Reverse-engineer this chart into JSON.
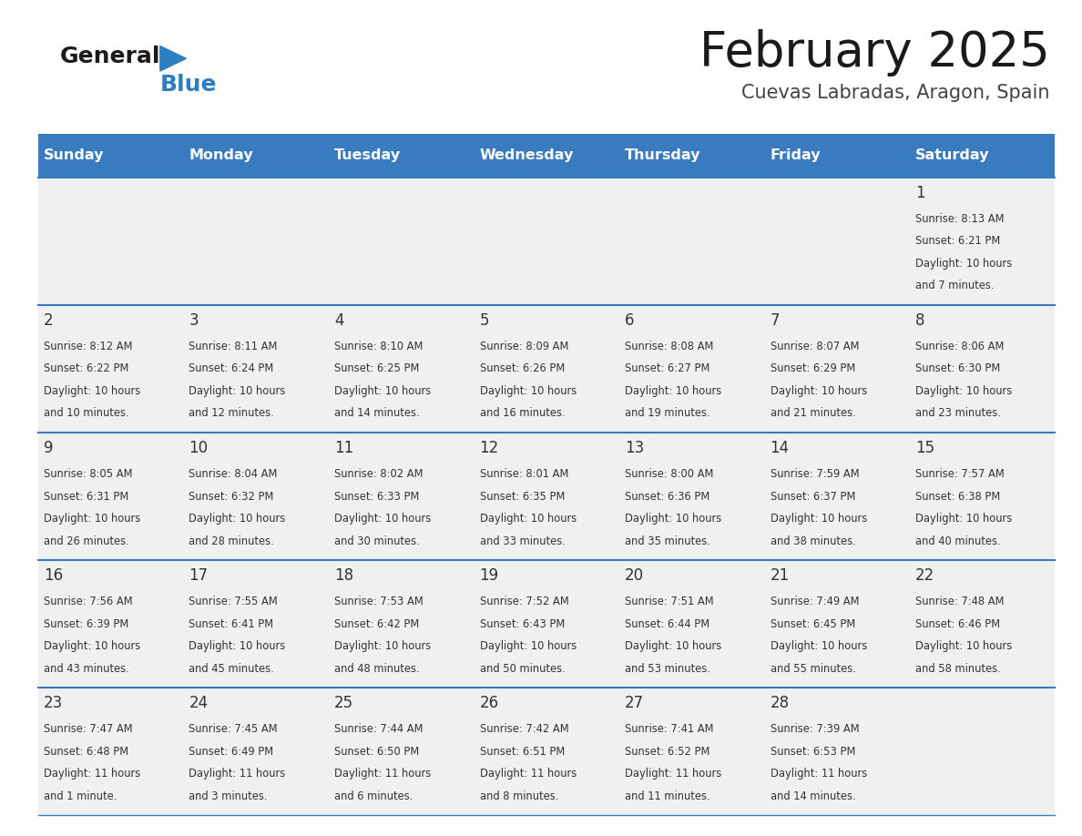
{
  "title": "February 2025",
  "subtitle": "Cuevas Labradas, Aragon, Spain",
  "header_color": "#3a7abf",
  "header_text_color": "#ffffff",
  "day_names": [
    "Sunday",
    "Monday",
    "Tuesday",
    "Wednesday",
    "Thursday",
    "Friday",
    "Saturday"
  ],
  "background_color": "#ffffff",
  "cell_bg": "#f0f0f0",
  "row_line_color": "#3a7abf",
  "text_color": "#333333",
  "days": [
    {
      "day": 1,
      "col": 6,
      "row": 0,
      "sunrise": "8:13 AM",
      "sunset": "6:21 PM",
      "daylight": "10 hours and 7 minutes"
    },
    {
      "day": 2,
      "col": 0,
      "row": 1,
      "sunrise": "8:12 AM",
      "sunset": "6:22 PM",
      "daylight": "10 hours and 10 minutes"
    },
    {
      "day": 3,
      "col": 1,
      "row": 1,
      "sunrise": "8:11 AM",
      "sunset": "6:24 PM",
      "daylight": "10 hours and 12 minutes"
    },
    {
      "day": 4,
      "col": 2,
      "row": 1,
      "sunrise": "8:10 AM",
      "sunset": "6:25 PM",
      "daylight": "10 hours and 14 minutes"
    },
    {
      "day": 5,
      "col": 3,
      "row": 1,
      "sunrise": "8:09 AM",
      "sunset": "6:26 PM",
      "daylight": "10 hours and 16 minutes"
    },
    {
      "day": 6,
      "col": 4,
      "row": 1,
      "sunrise": "8:08 AM",
      "sunset": "6:27 PM",
      "daylight": "10 hours and 19 minutes"
    },
    {
      "day": 7,
      "col": 5,
      "row": 1,
      "sunrise": "8:07 AM",
      "sunset": "6:29 PM",
      "daylight": "10 hours and 21 minutes"
    },
    {
      "day": 8,
      "col": 6,
      "row": 1,
      "sunrise": "8:06 AM",
      "sunset": "6:30 PM",
      "daylight": "10 hours and 23 minutes"
    },
    {
      "day": 9,
      "col": 0,
      "row": 2,
      "sunrise": "8:05 AM",
      "sunset": "6:31 PM",
      "daylight": "10 hours and 26 minutes"
    },
    {
      "day": 10,
      "col": 1,
      "row": 2,
      "sunrise": "8:04 AM",
      "sunset": "6:32 PM",
      "daylight": "10 hours and 28 minutes"
    },
    {
      "day": 11,
      "col": 2,
      "row": 2,
      "sunrise": "8:02 AM",
      "sunset": "6:33 PM",
      "daylight": "10 hours and 30 minutes"
    },
    {
      "day": 12,
      "col": 3,
      "row": 2,
      "sunrise": "8:01 AM",
      "sunset": "6:35 PM",
      "daylight": "10 hours and 33 minutes"
    },
    {
      "day": 13,
      "col": 4,
      "row": 2,
      "sunrise": "8:00 AM",
      "sunset": "6:36 PM",
      "daylight": "10 hours and 35 minutes"
    },
    {
      "day": 14,
      "col": 5,
      "row": 2,
      "sunrise": "7:59 AM",
      "sunset": "6:37 PM",
      "daylight": "10 hours and 38 minutes"
    },
    {
      "day": 15,
      "col": 6,
      "row": 2,
      "sunrise": "7:57 AM",
      "sunset": "6:38 PM",
      "daylight": "10 hours and 40 minutes"
    },
    {
      "day": 16,
      "col": 0,
      "row": 3,
      "sunrise": "7:56 AM",
      "sunset": "6:39 PM",
      "daylight": "10 hours and 43 minutes"
    },
    {
      "day": 17,
      "col": 1,
      "row": 3,
      "sunrise": "7:55 AM",
      "sunset": "6:41 PM",
      "daylight": "10 hours and 45 minutes"
    },
    {
      "day": 18,
      "col": 2,
      "row": 3,
      "sunrise": "7:53 AM",
      "sunset": "6:42 PM",
      "daylight": "10 hours and 48 minutes"
    },
    {
      "day": 19,
      "col": 3,
      "row": 3,
      "sunrise": "7:52 AM",
      "sunset": "6:43 PM",
      "daylight": "10 hours and 50 minutes"
    },
    {
      "day": 20,
      "col": 4,
      "row": 3,
      "sunrise": "7:51 AM",
      "sunset": "6:44 PM",
      "daylight": "10 hours and 53 minutes"
    },
    {
      "day": 21,
      "col": 5,
      "row": 3,
      "sunrise": "7:49 AM",
      "sunset": "6:45 PM",
      "daylight": "10 hours and 55 minutes"
    },
    {
      "day": 22,
      "col": 6,
      "row": 3,
      "sunrise": "7:48 AM",
      "sunset": "6:46 PM",
      "daylight": "10 hours and 58 minutes"
    },
    {
      "day": 23,
      "col": 0,
      "row": 4,
      "sunrise": "7:47 AM",
      "sunset": "6:48 PM",
      "daylight": "11 hours and 1 minute"
    },
    {
      "day": 24,
      "col": 1,
      "row": 4,
      "sunrise": "7:45 AM",
      "sunset": "6:49 PM",
      "daylight": "11 hours and 3 minutes"
    },
    {
      "day": 25,
      "col": 2,
      "row": 4,
      "sunrise": "7:44 AM",
      "sunset": "6:50 PM",
      "daylight": "11 hours and 6 minutes"
    },
    {
      "day": 26,
      "col": 3,
      "row": 4,
      "sunrise": "7:42 AM",
      "sunset": "6:51 PM",
      "daylight": "11 hours and 8 minutes"
    },
    {
      "day": 27,
      "col": 4,
      "row": 4,
      "sunrise": "7:41 AM",
      "sunset": "6:52 PM",
      "daylight": "11 hours and 11 minutes"
    },
    {
      "day": 28,
      "col": 5,
      "row": 4,
      "sunrise": "7:39 AM",
      "sunset": "6:53 PM",
      "daylight": "11 hours and 14 minutes"
    }
  ]
}
